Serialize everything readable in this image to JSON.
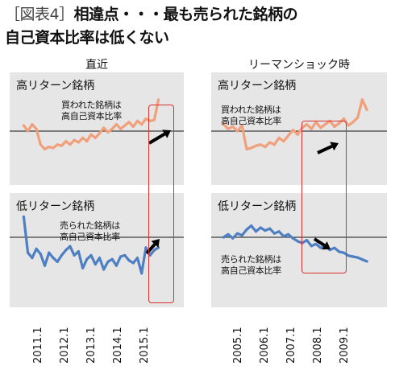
{
  "title": {
    "prefix": "［図表4］",
    "line1": "相違点・・・最も売られた銘柄の",
    "line2": "自己資本比率は低くない"
  },
  "colors": {
    "high_series": "#f0a07a",
    "low_series": "#4f7fc3",
    "highlight": "#d93030",
    "panel_bg": "#e6e6e6",
    "arrow": "#000000"
  },
  "chart_data": [
    {
      "type": "line",
      "column_label": "直近",
      "panel_label": "高リターン銘柄",
      "annotation": [
        "買われた銘柄は",
        "高自己資本比率"
      ],
      "x_ticks": [
        "2011.1",
        "2012.1",
        "2013.1",
        "2014.1",
        "2015.1"
      ],
      "x": [
        2011.0,
        2011.15,
        2011.3,
        2011.45,
        2011.6,
        2011.75,
        2011.9,
        2012.05,
        2012.2,
        2012.35,
        2012.5,
        2012.65,
        2012.8,
        2012.95,
        2013.1,
        2013.25,
        2013.4,
        2013.55,
        2013.7,
        2013.85,
        2014.0,
        2014.15,
        2014.3,
        2014.45,
        2014.6,
        2014.75,
        2014.9,
        2015.05,
        2015.2,
        2015.35,
        2015.5,
        2015.65,
        2015.8
      ],
      "series": [
        {
          "color": "#f0a07a",
          "values": [
            0.5,
            0.0,
            0.6,
            0.2,
            -1.2,
            -1.6,
            -1.4,
            -1.5,
            -1.2,
            -1.3,
            -0.9,
            -1.2,
            -0.8,
            -1.0,
            -0.6,
            -0.9,
            -0.3,
            -0.6,
            -0.2,
            0.3,
            -0.1,
            0.2,
            0.6,
            0.2,
            0.5,
            0.8,
            0.4,
            0.9,
            0.6,
            1.1,
            0.9,
            1.0,
            2.8
          ]
        }
      ],
      "highlight_x_range": [
        2015.05,
        2016.0
      ],
      "reference_line": 0
    },
    {
      "type": "line",
      "column_label": "直近",
      "panel_label": "低リターン銘柄",
      "annotation": [
        "売られた銘柄は",
        "高自己資本比率"
      ],
      "x_ticks": [
        "2011.1",
        "2012.1",
        "2013.1",
        "2014.1",
        "2015.1"
      ],
      "x": [
        2011.0,
        2011.15,
        2011.3,
        2011.45,
        2011.6,
        2011.75,
        2011.9,
        2012.05,
        2012.2,
        2012.35,
        2012.5,
        2012.65,
        2012.8,
        2012.95,
        2013.1,
        2013.25,
        2013.4,
        2013.55,
        2013.7,
        2013.85,
        2014.0,
        2014.15,
        2014.3,
        2014.45,
        2014.6,
        2014.75,
        2014.9,
        2015.05,
        2015.2,
        2015.35,
        2015.5,
        2015.65,
        2015.8
      ],
      "series": [
        {
          "color": "#4f7fc3",
          "values": [
            1.6,
            -1.2,
            -1.6,
            -0.9,
            -1.3,
            -2.2,
            -1.2,
            -1.6,
            -1.9,
            -1.4,
            -1.0,
            -0.7,
            -1.4,
            -1.1,
            -2.4,
            -1.7,
            -1.4,
            -2.1,
            -1.6,
            -2.5,
            -1.9,
            -1.7,
            -2.2,
            -1.5,
            -1.4,
            -1.8,
            -2.0,
            -1.6,
            -2.8,
            -0.8,
            -1.4,
            -1.0,
            -0.8
          ]
        }
      ],
      "highlight_x_range": [
        2015.05,
        2016.0
      ],
      "reference_line": 0
    },
    {
      "type": "line",
      "column_label": "リーマンショック時",
      "panel_label": "高リターン銘柄",
      "annotation": [
        "買われた銘柄は",
        "高自己資本比率"
      ],
      "x_ticks": [
        "2005.1",
        "2006.1",
        "2007.1",
        "2008.1",
        "2009.1"
      ],
      "x": [
        2005.0,
        2005.15,
        2005.3,
        2005.45,
        2005.6,
        2005.75,
        2005.9,
        2006.05,
        2006.2,
        2006.35,
        2006.5,
        2006.65,
        2006.8,
        2006.95,
        2007.1,
        2007.25,
        2007.4,
        2007.55,
        2007.7,
        2007.85,
        2008.0,
        2008.15,
        2008.3,
        2008.45,
        2008.6,
        2008.75,
        2008.9,
        2009.05,
        2009.2,
        2009.35,
        2009.5,
        2009.65
      ],
      "series": [
        {
          "color": "#f0a07a",
          "values": [
            0.6,
            0.2,
            0.4,
            0.0,
            0.5,
            -1.6,
            -1.5,
            -1.3,
            -1.2,
            -1.4,
            -1.0,
            -1.2,
            -0.6,
            -0.9,
            -0.4,
            0.1,
            -0.3,
            0.3,
            0.6,
            0.2,
            0.8,
            0.3,
            0.6,
            0.9,
            0.4,
            0.7,
            1.1,
            0.5,
            0.8,
            1.2,
            2.8,
            1.9
          ]
        }
      ],
      "highlight_x_range": [
        2007.55,
        2008.85
      ],
      "reference_line": 0
    },
    {
      "type": "line",
      "column_label": "リーマンショック時",
      "panel_label": "低リターン銘柄",
      "annotation": [
        "売られた銘柄は",
        "高自己資本比率"
      ],
      "x_ticks": [
        "2005.1",
        "2006.1",
        "2007.1",
        "2008.1",
        "2009.1"
      ],
      "x": [
        2005.0,
        2005.15,
        2005.3,
        2005.45,
        2005.6,
        2005.75,
        2005.9,
        2006.05,
        2006.2,
        2006.35,
        2006.5,
        2006.65,
        2006.8,
        2006.95,
        2007.1,
        2007.25,
        2007.4,
        2007.55,
        2007.7,
        2007.85,
        2008.0,
        2008.15,
        2008.3,
        2008.45,
        2008.6,
        2008.75,
        2008.9,
        2009.05,
        2009.2,
        2009.35,
        2009.5,
        2009.65
      ],
      "series": [
        {
          "color": "#4f7fc3",
          "values": [
            0.0,
            0.3,
            -0.1,
            0.4,
            0.2,
            0.8,
            1.2,
            0.6,
            1.0,
            0.7,
            0.9,
            0.4,
            0.6,
            0.1,
            0.3,
            -0.1,
            -0.4,
            -0.6,
            -0.3,
            -0.9,
            -0.7,
            -1.1,
            -0.9,
            -1.3,
            -1.1,
            -1.5,
            -1.6,
            -1.9,
            -2.0,
            -2.1,
            -2.3,
            -2.5
          ]
        }
      ],
      "highlight_x_range": [
        2007.55,
        2008.85
      ],
      "reference_line": 0
    }
  ]
}
